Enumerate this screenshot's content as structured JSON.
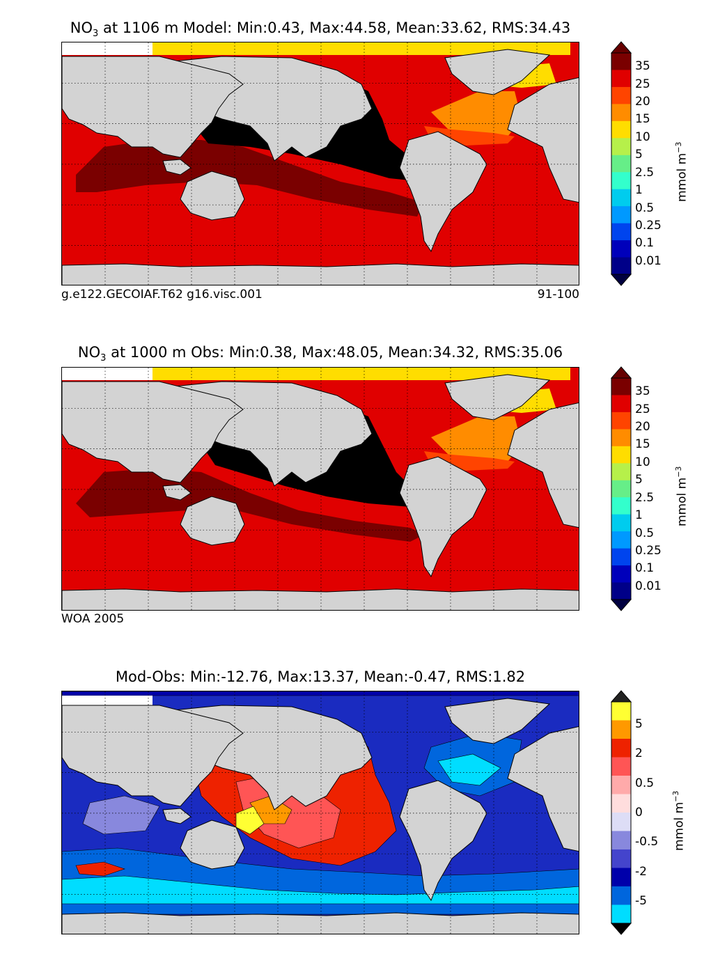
{
  "panels": [
    {
      "id": "model",
      "title_species": "NO",
      "title_sub": "3",
      "title_rest": " at 1106 m Model: Min:0.43, Max:44.58, Mean:33.62, RMS:34.43",
      "footer_left": "g.e122.GECOIAF.T62 g16.visc.001",
      "footer_right": "91-100",
      "units": "mmol m",
      "units_exp": "−3",
      "colorbar": {
        "labels": [
          "35",
          "25",
          "20",
          "15",
          "10",
          "5",
          "2.5",
          "1",
          "0.5",
          "0.25",
          "0.1",
          "0.01"
        ],
        "colors_top_to_bottom": [
          "#7a0000",
          "#e00000",
          "#ff4400",
          "#ff8c00",
          "#ffdd00",
          "#b6f04a",
          "#66ee88",
          "#33ffcc",
          "#00ccee",
          "#0099ff",
          "#0044ee",
          "#0000bb",
          "#000088"
        ],
        "extend_top": "#660000",
        "extend_bottom": "#000040"
      }
    },
    {
      "id": "obs",
      "title_species": "NO",
      "title_sub": "3",
      "title_rest": " at 1000 m Obs: Min:0.38, Max:48.05, Mean:34.32, RMS:35.06",
      "footer_left": "WOA 2005",
      "footer_right": "",
      "units": "mmol m",
      "units_exp": "−3",
      "colorbar": {
        "labels": [
          "35",
          "25",
          "20",
          "15",
          "10",
          "5",
          "2.5",
          "1",
          "0.5",
          "0.25",
          "0.1",
          "0.01"
        ],
        "colors_top_to_bottom": [
          "#7a0000",
          "#e00000",
          "#ff4400",
          "#ff8c00",
          "#ffdd00",
          "#b6f04a",
          "#66ee88",
          "#33ffcc",
          "#00ccee",
          "#0099ff",
          "#0044ee",
          "#0000bb",
          "#000088"
        ],
        "extend_top": "#660000",
        "extend_bottom": "#000040"
      }
    },
    {
      "id": "diff",
      "title_species": "",
      "title_sub": "",
      "title_rest": "Mod-Obs: Min:-12.76, Max:13.37, Mean:-0.47, RMS:1.82",
      "footer_left": "",
      "footer_right": "",
      "units": "mmol m",
      "units_exp": "−3",
      "colorbar": {
        "labels": [
          "5",
          "2",
          "0.5",
          "0",
          "-0.5",
          "-2",
          "-5"
        ],
        "colors_top_to_bottom": [
          "#ffff33",
          "#ff9900",
          "#ee2200",
          "#ff5555",
          "#ffaaaa",
          "#ffdddd",
          "#ddddf6",
          "#8888dd",
          "#4444cc",
          "#0000aa",
          "#0066dd",
          "#00ddff"
        ],
        "extend_top": "#222222",
        "extend_bottom": "#000000"
      }
    }
  ],
  "colors": {
    "land": "#d3d3d3",
    "ice": "#ffffff",
    "pacific_core": "#000000",
    "deep_red": "#e00000",
    "dark_red": "#7a0000",
    "atlantic_orange": "#ff8c00",
    "atlantic_redorange": "#ff4400",
    "arctic_yellow": "#ffdd00"
  }
}
